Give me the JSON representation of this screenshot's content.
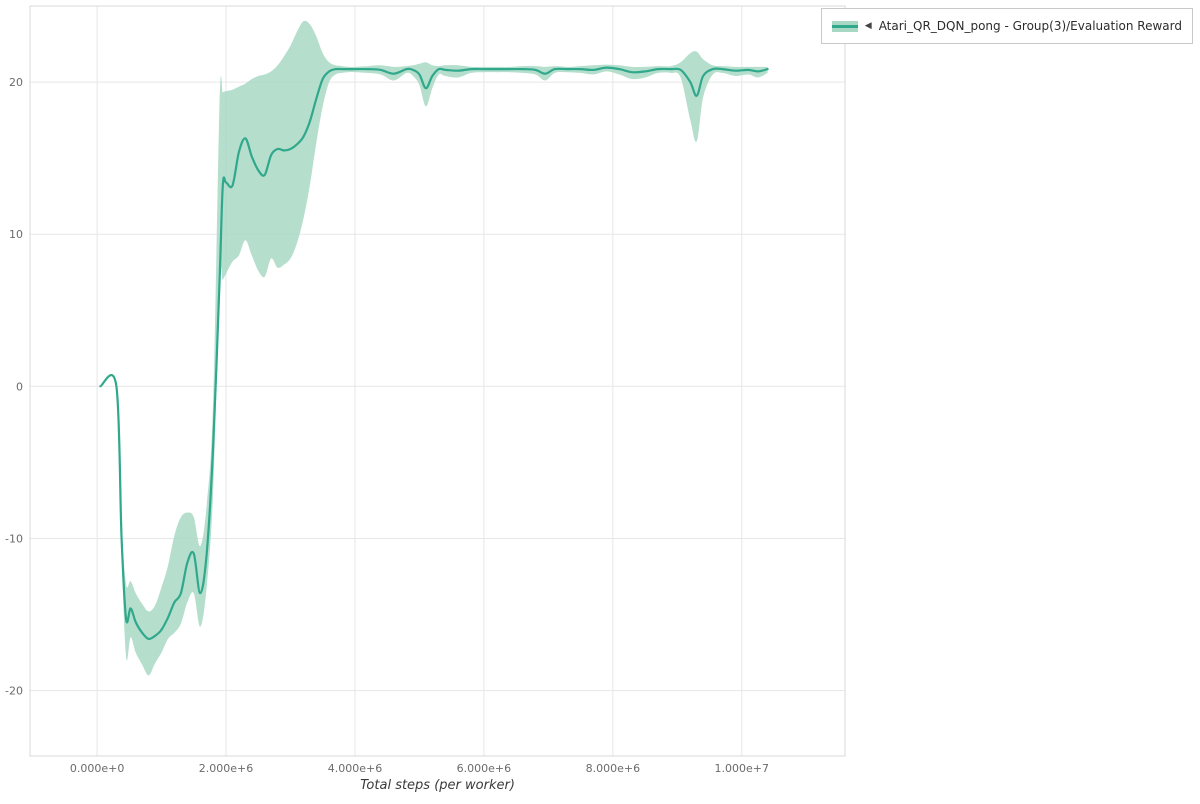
{
  "legend": {
    "collapse_icon": "◀"
  },
  "chart_data": {
    "type": "line",
    "title": "",
    "xlabel": "Total steps (per worker)",
    "ylabel": "",
    "xlim": [
      -1040000,
      11600000
    ],
    "ylim": [
      -24.3,
      25.0
    ],
    "grid": true,
    "legend_position": "top-right-outside",
    "x_ticks": [
      {
        "value": 0,
        "label": "0.000e+0"
      },
      {
        "value": 2000000,
        "label": "2.000e+6"
      },
      {
        "value": 4000000,
        "label": "4.000e+6"
      },
      {
        "value": 6000000,
        "label": "6.000e+6"
      },
      {
        "value": 8000000,
        "label": "8.000e+6"
      },
      {
        "value": 10000000,
        "label": "1.000e+7"
      }
    ],
    "y_ticks": [
      {
        "value": 20,
        "label": "20"
      },
      {
        "value": 10,
        "label": "10"
      },
      {
        "value": 0,
        "label": "0"
      },
      {
        "value": -10,
        "label": "-10"
      },
      {
        "value": -20,
        "label": "-20"
      }
    ],
    "series": [
      {
        "name": "Atari_QR_DQN_pong - Group(3)/Evaluation Reward",
        "color": "#2fa88b",
        "band_color": "#a8d8c4",
        "band_opacity": 0.85,
        "x": [
          50000,
          300000,
          380000,
          450000,
          520000,
          600000,
          700000,
          800000,
          900000,
          1000000,
          1100000,
          1200000,
          1300000,
          1400000,
          1500000,
          1600000,
          1700000,
          1800000,
          1900000,
          1950000,
          2000000,
          2100000,
          2200000,
          2300000,
          2400000,
          2500000,
          2600000,
          2700000,
          2800000,
          2900000,
          3000000,
          3100000,
          3200000,
          3300000,
          3400000,
          3500000,
          3600000,
          3700000,
          3800000,
          3900000,
          4000000,
          4200000,
          4400000,
          4600000,
          4800000,
          4900000,
          5000000,
          5100000,
          5200000,
          5300000,
          5400000,
          5600000,
          5800000,
          6000000,
          6200000,
          6400000,
          6600000,
          6800000,
          6950000,
          7100000,
          7300000,
          7500000,
          7700000,
          7900000,
          8100000,
          8300000,
          8500000,
          8700000,
          8900000,
          9050000,
          9200000,
          9300000,
          9400000,
          9550000,
          9700000,
          9900000,
          10100000,
          10250000,
          10400000
        ],
        "mean": [
          0,
          0,
          -10,
          -15.3,
          -14.6,
          -15.5,
          -16.2,
          -16.6,
          -16.4,
          -16,
          -15.2,
          -14.2,
          -13.6,
          -11.6,
          -11,
          -13.6,
          -11,
          -4,
          7,
          13.2,
          13.4,
          13.2,
          15.4,
          16.3,
          15.1,
          14.2,
          13.9,
          15.2,
          15.6,
          15.5,
          15.6,
          15.9,
          16.4,
          17.4,
          18.9,
          20.2,
          20.7,
          20.85,
          20.85,
          20.85,
          20.85,
          20.85,
          20.8,
          20.55,
          20.85,
          20.8,
          20.5,
          19.6,
          20.4,
          20.85,
          20.8,
          20.75,
          20.85,
          20.85,
          20.85,
          20.85,
          20.85,
          20.8,
          20.55,
          20.85,
          20.85,
          20.85,
          20.8,
          20.95,
          20.85,
          20.65,
          20.7,
          20.85,
          20.85,
          20.8,
          20,
          19.1,
          20.4,
          20.85,
          20.85,
          20.75,
          20.8,
          20.7,
          20.85
        ],
        "low": [
          0,
          0,
          -11,
          -17.8,
          -16.5,
          -17.5,
          -18.3,
          -19,
          -18.2,
          -17.5,
          -16.6,
          -16.2,
          -15.6,
          -14.2,
          -13.6,
          -15.8,
          -13.2,
          -7,
          6.8,
          7,
          7.4,
          8.2,
          8.6,
          9.6,
          8.6,
          7.6,
          7.2,
          8.4,
          7.8,
          8,
          8.4,
          9.4,
          11,
          13.2,
          16,
          18.4,
          20,
          20.5,
          20.6,
          20.65,
          20.65,
          20.6,
          20.5,
          20.1,
          20.6,
          20.4,
          19.8,
          18.4,
          19.6,
          20.5,
          20.4,
          20.3,
          20.6,
          20.65,
          20.65,
          20.65,
          20.6,
          20.5,
          20.1,
          20.6,
          20.65,
          20.6,
          20.5,
          20.7,
          20.5,
          20.2,
          20.3,
          20.6,
          20.6,
          20.3,
          17.5,
          16.1,
          19,
          20.5,
          20.6,
          20.4,
          20.5,
          20.3,
          20.6
        ],
        "high": [
          0,
          0,
          -9,
          -13,
          -12.8,
          -13.6,
          -14.3,
          -14.8,
          -14.4,
          -13.2,
          -11.8,
          -9.8,
          -8.6,
          -8.3,
          -8.6,
          -10.5,
          -7.8,
          -1,
          18.8,
          19.3,
          19.4,
          19.5,
          19.7,
          19.9,
          20.2,
          20.4,
          20.5,
          20.7,
          21.1,
          21.7,
          22.4,
          23.3,
          24,
          23.8,
          23,
          21.9,
          21.3,
          21.1,
          21.05,
          21,
          21,
          21.05,
          21.1,
          21,
          21.05,
          21.1,
          21.2,
          21.3,
          21.1,
          21.05,
          21.1,
          21.1,
          21,
          21,
          21,
          21,
          21.05,
          21.05,
          21,
          21.05,
          21,
          21.05,
          21.1,
          21.15,
          21.1,
          21,
          21,
          21.05,
          21.05,
          21.3,
          21.9,
          22,
          21.5,
          21.1,
          21.05,
          21,
          21,
          21,
          21
        ]
      }
    ]
  }
}
